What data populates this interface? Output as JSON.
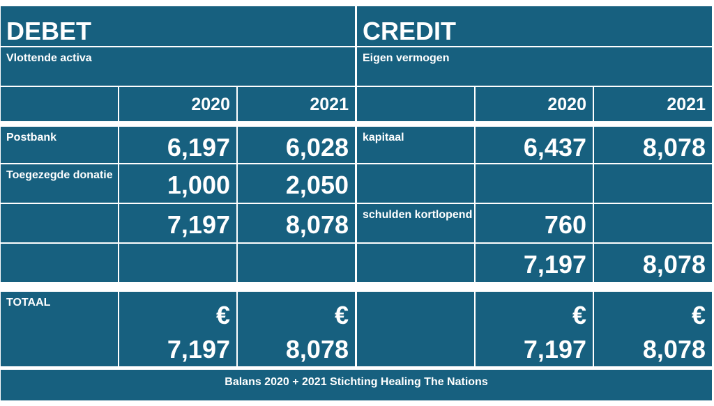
{
  "header": {
    "debet": "DEBET",
    "credit": "CREDIT"
  },
  "subheader": {
    "debet": "Vlottende activa",
    "credit": "Eigen vermogen"
  },
  "years": [
    "2020",
    "2021"
  ],
  "debet_rows": [
    {
      "label": "Postbank",
      "v2020": "6,197",
      "v2021": "6,028"
    },
    {
      "label": "Toegezegde donatie",
      "v2020": "1,000",
      "v2021": "2,050"
    },
    {
      "label": "",
      "v2020": "7,197",
      "v2021": "8,078"
    }
  ],
  "credit_rows": [
    {
      "label": "kapitaal",
      "v2020": "6,437",
      "v2021": "8,078"
    },
    {
      "label": "",
      "v2020": "",
      "v2021": ""
    },
    {
      "label": "schulden kortlopend",
      "v2020": "760",
      "v2021": ""
    },
    {
      "label": "",
      "v2020": "7,197",
      "v2021": "8,078"
    }
  ],
  "totals": {
    "label": "TOTAAL",
    "currency": "€",
    "debet": {
      "v2020": "7,197",
      "v2021": "8,078"
    },
    "credit": {
      "v2020": "7,197",
      "v2021": "8,078"
    }
  },
  "footer": "Balans 2020 +  2021  Stichting  Healing The Nations",
  "colors": {
    "cell": "#17607f",
    "gap": "#ffffff"
  }
}
